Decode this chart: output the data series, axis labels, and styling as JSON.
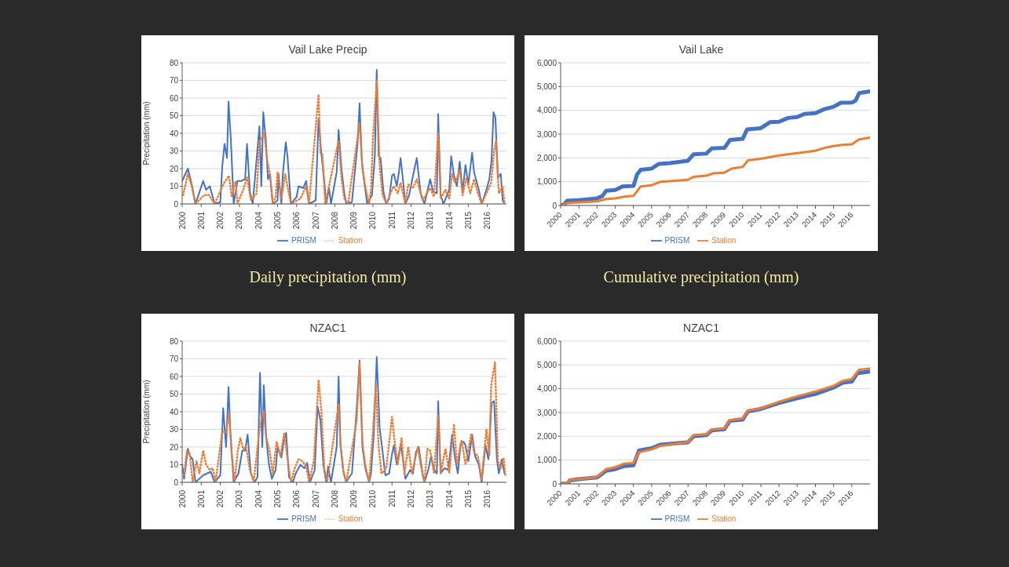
{
  "chart_data": [
    {
      "type": "line",
      "title": "Vail Lake Precip",
      "ylabel": "Precipitation (mm)",
      "annotations": [
        "Daily precipitation (mm)"
      ],
      "xlim": [
        2000,
        2017
      ],
      "xticks": [
        2000,
        2001,
        2002,
        2003,
        2004,
        2005,
        2006,
        2007,
        2008,
        2009,
        2010,
        2011,
        2012,
        2013,
        2014,
        2015,
        2016
      ],
      "ylim": [
        0,
        80
      ],
      "yticks": [
        0,
        10,
        20,
        30,
        40,
        50,
        60,
        70,
        80
      ],
      "grid": "y",
      "legend": "bottom",
      "series": [
        {
          "name": "PRISM",
          "color": "#4472c4",
          "line_style": "solid",
          "x": [
            2000.0,
            2000.3,
            2000.5,
            2000.7,
            2001.1,
            2001.25,
            2001.45,
            2001.7,
            2002.0,
            2002.1,
            2002.22,
            2002.35,
            2002.43,
            2002.55,
            2002.7,
            2002.9,
            2003.1,
            2003.3,
            2003.4,
            2003.55,
            2003.7,
            2004.05,
            2004.15,
            2004.25,
            2004.38,
            2004.5,
            2004.6,
            2004.75,
            2005.0,
            2005.05,
            2005.2,
            2005.28,
            2005.43,
            2005.52,
            2005.7,
            2006.0,
            2006.1,
            2006.35,
            2006.5,
            2006.65,
            2007.0,
            2007.15,
            2007.3,
            2007.45,
            2007.55,
            2007.7,
            2007.8,
            2008.1,
            2008.2,
            2008.35,
            2008.5,
            2008.6,
            2008.9,
            2009.2,
            2009.3,
            2009.42,
            2009.55,
            2009.7,
            2009.95,
            2010.1,
            2010.2,
            2010.3,
            2010.4,
            2010.55,
            2010.7,
            2010.85,
            2011.0,
            2011.1,
            2011.25,
            2011.35,
            2011.45,
            2011.55,
            2011.7,
            2011.9,
            2012.1,
            2012.3,
            2012.5,
            2012.7,
            2013.0,
            2013.15,
            2013.35,
            2013.42,
            2013.55,
            2013.7,
            2014.0,
            2014.1,
            2014.25,
            2014.4,
            2014.55,
            2014.7,
            2014.85,
            2015.0,
            2015.2,
            2015.3,
            2015.4,
            2015.55,
            2015.7,
            2015.95,
            2016.1,
            2016.22,
            2016.32,
            2016.42,
            2016.55,
            2016.7,
            2016.8,
            2016.9
          ],
          "values": [
            13,
            20,
            11,
            0,
            13,
            8,
            10,
            0,
            1,
            21,
            34,
            26,
            58,
            37,
            0,
            13,
            13,
            14,
            34,
            7,
            0,
            44,
            10,
            52,
            37,
            14,
            17,
            0,
            2,
            17,
            0,
            17,
            35,
            27,
            0,
            4,
            10,
            9,
            13,
            0,
            2,
            48,
            28,
            13,
            0,
            9,
            0,
            18,
            42,
            20,
            6,
            0,
            1,
            35,
            57,
            24,
            12,
            0,
            5,
            27,
            76,
            27,
            26,
            7,
            0,
            3,
            16,
            17,
            10,
            17,
            26,
            16,
            0,
            5,
            16,
            26,
            6,
            0,
            14,
            7,
            6,
            51,
            5,
            0,
            8,
            27,
            16,
            10,
            24,
            7,
            22,
            11,
            29,
            18,
            14,
            8,
            0,
            8,
            14,
            25,
            52,
            49,
            15,
            17,
            2,
            0
          ]
        },
        {
          "name": "Station",
          "color": "#ed7d31",
          "line_style": "dotted",
          "x": [
            2000.05,
            2000.3,
            2000.5,
            2000.7,
            2001.15,
            2001.4,
            2001.7,
            2002.2,
            2002.45,
            2002.6,
            2002.8,
            2002.9,
            2003.2,
            2003.4,
            2003.6,
            2003.9,
            2004.05,
            2004.3,
            2004.45,
            2004.6,
            2004.75,
            2004.9,
            2005.0,
            2005.2,
            2005.4,
            2005.55,
            2005.7,
            2006.2,
            2006.5,
            2006.65,
            2007.15,
            2007.25,
            2007.35,
            2007.5,
            2008.2,
            2008.35,
            2008.5,
            2008.7,
            2009.3,
            2009.45,
            2009.6,
            2009.8,
            2009.9,
            2010.0,
            2010.2,
            2010.35,
            2010.5,
            2010.7,
            2011.0,
            2011.1,
            2011.3,
            2011.45,
            2011.7,
            2011.85,
            2012.1,
            2012.3,
            2012.6,
            2013.0,
            2013.2,
            2013.42,
            2013.55,
            2013.8,
            2014.0,
            2014.15,
            2014.3,
            2014.55,
            2014.7,
            2014.9,
            2015.1,
            2015.3,
            2015.5,
            2015.7,
            2016.2,
            2016.35,
            2016.45,
            2016.6,
            2016.8,
            2016.9
          ],
          "values": [
            5,
            17,
            10,
            0,
            5,
            5,
            0,
            12,
            16,
            4,
            13,
            0,
            8,
            15,
            2,
            6,
            35,
            40,
            25,
            17,
            0,
            4,
            18,
            3,
            17,
            8,
            0,
            3,
            10,
            0,
            62,
            29,
            28,
            0,
            36,
            15,
            3,
            0,
            46,
            20,
            10,
            0,
            8,
            37,
            70,
            22,
            5,
            0,
            8,
            10,
            6,
            12,
            0,
            11,
            9,
            14,
            2,
            9,
            4,
            40,
            3,
            8,
            3,
            17,
            12,
            19,
            5,
            15,
            6,
            14,
            6,
            0,
            12,
            30,
            36,
            6,
            10,
            0
          ]
        }
      ]
    },
    {
      "type": "line",
      "title": "Vail Lake",
      "annotations": [
        "Cumulative precipitation (mm)"
      ],
      "xlim": [
        2000,
        2017
      ],
      "xticks": [
        2000,
        2001,
        2002,
        2003,
        2004,
        2005,
        2006,
        2007,
        2008,
        2009,
        2010,
        2011,
        2012,
        2013,
        2014,
        2015,
        2016
      ],
      "ylim": [
        0,
        6000
      ],
      "yticks": [
        0,
        {
          "value": 1000,
          "label": "1,000"
        },
        {
          "value": 2000,
          "label": "2,000"
        },
        {
          "value": 3000,
          "label": "3,000"
        },
        {
          "value": 4000,
          "label": "4,000"
        },
        {
          "value": 5000,
          "label": "5,000"
        },
        {
          "value": 6000,
          "label": "6,000"
        }
      ],
      "grid": "y",
      "legend": "bottom",
      "series": [
        {
          "name": "PRISM",
          "color": "#4472c4",
          "line_style": "solid",
          "x": [
            2000,
            2000.2,
            2000.35,
            2001,
            2002,
            2002.3,
            2002.5,
            2003,
            2003.4,
            2004,
            2004.2,
            2004.4,
            2005,
            2005.4,
            2006,
            2007,
            2007.3,
            2008,
            2008.3,
            2009,
            2009.3,
            2010,
            2010.25,
            2011,
            2011.5,
            2012,
            2012.5,
            2013,
            2013.4,
            2014,
            2014.5,
            2015,
            2015.4,
            2016,
            2016.2,
            2016.4,
            2017
          ],
          "values": [
            0,
            50,
            200,
            220,
            300,
            400,
            620,
            650,
            800,
            820,
            1300,
            1500,
            1550,
            1750,
            1780,
            1880,
            2150,
            2180,
            2400,
            2420,
            2750,
            2800,
            3200,
            3250,
            3500,
            3520,
            3680,
            3720,
            3850,
            3880,
            4050,
            4150,
            4320,
            4330,
            4400,
            4720,
            4800
          ]
        },
        {
          "name": "Station",
          "color": "#ed7d31",
          "line_style": "solid",
          "x": [
            2000,
            2000.4,
            2001,
            2002,
            2002.5,
            2003,
            2003.5,
            2004,
            2004.4,
            2005,
            2005.5,
            2006,
            2007,
            2007.3,
            2008,
            2008.4,
            2009,
            2009.4,
            2010,
            2010.3,
            2011,
            2012,
            2013,
            2014,
            2014.5,
            2015,
            2015.5,
            2016,
            2016.4,
            2017
          ],
          "values": [
            0,
            100,
            130,
            170,
            270,
            300,
            370,
            400,
            800,
            850,
            1000,
            1020,
            1080,
            1200,
            1250,
            1350,
            1380,
            1550,
            1620,
            1900,
            1960,
            2100,
            2200,
            2300,
            2420,
            2500,
            2550,
            2570,
            2780,
            2850
          ]
        }
      ]
    },
    {
      "type": "line",
      "title": "NZAC1",
      "ylabel": "Precipitation (mm)",
      "xlim": [
        2000,
        2017
      ],
      "xticks": [
        2000,
        2001,
        2002,
        2003,
        2004,
        2005,
        2006,
        2007,
        2008,
        2009,
        2010,
        2011,
        2012,
        2013,
        2014,
        2015,
        2016
      ],
      "ylim": [
        0,
        80
      ],
      "yticks": [
        0,
        10,
        20,
        30,
        40,
        50,
        60,
        70,
        80
      ],
      "grid": "y",
      "legend": "bottom",
      "series": [
        {
          "name": "PRISM",
          "color": "#4472c4",
          "line_style": "solid",
          "x": [
            2000.0,
            2000.1,
            2000.3,
            2000.4,
            2000.55,
            2000.7,
            2001.1,
            2001.3,
            2001.5,
            2001.7,
            2002.0,
            2002.15,
            2002.3,
            2002.43,
            2002.52,
            2002.7,
            2002.95,
            2003.15,
            2003.3,
            2003.43,
            2003.6,
            2003.8,
            2003.95,
            2004.08,
            2004.2,
            2004.28,
            2004.4,
            2004.55,
            2004.7,
            2004.9,
            2005.0,
            2005.2,
            2005.35,
            2005.45,
            2005.6,
            2005.8,
            2005.95,
            2006.2,
            2006.4,
            2006.55,
            2006.7,
            2006.95,
            2007.1,
            2007.25,
            2007.4,
            2007.55,
            2007.65,
            2007.8,
            2008.1,
            2008.2,
            2008.3,
            2008.45,
            2008.6,
            2008.7,
            2008.9,
            2009.15,
            2009.3,
            2009.45,
            2009.6,
            2009.8,
            2009.9,
            2010.05,
            2010.2,
            2010.35,
            2010.5,
            2010.65,
            2010.85,
            2011.0,
            2011.1,
            2011.25,
            2011.45,
            2011.55,
            2011.7,
            2011.95,
            2012.1,
            2012.25,
            2012.4,
            2012.6,
            2012.7,
            2012.9,
            2013.05,
            2013.2,
            2013.35,
            2013.42,
            2013.55,
            2013.75,
            2013.95,
            2014.15,
            2014.3,
            2014.45,
            2014.6,
            2014.75,
            2014.85,
            2015.0,
            2015.2,
            2015.35,
            2015.55,
            2015.7,
            2015.9,
            2016.05,
            2016.22,
            2016.35,
            2016.5,
            2016.6,
            2016.75,
            2016.9
          ],
          "values": [
            10,
            2,
            19,
            15,
            13,
            0,
            4,
            5,
            6,
            0,
            4,
            42,
            20,
            54,
            30,
            0,
            5,
            18,
            18,
            27,
            5,
            0,
            3,
            62,
            20,
            55,
            26,
            10,
            2,
            7,
            20,
            14,
            25,
            28,
            3,
            0,
            5,
            10,
            8,
            11,
            0,
            7,
            43,
            35,
            10,
            0,
            9,
            0,
            20,
            60,
            21,
            6,
            0,
            2,
            5,
            42,
            69,
            20,
            8,
            0,
            5,
            28,
            71,
            31,
            18,
            4,
            5,
            16,
            21,
            10,
            21,
            15,
            2,
            7,
            5,
            17,
            20,
            5,
            0,
            7,
            15,
            7,
            5,
            46,
            5,
            8,
            7,
            27,
            14,
            5,
            22,
            23,
            21,
            12,
            27,
            15,
            10,
            0,
            21,
            13,
            45,
            46,
            13,
            5,
            13,
            5
          ]
        },
        {
          "name": "Station",
          "color": "#ed7d31",
          "line_style": "dotted",
          "x": [
            2000.1,
            2000.25,
            2000.4,
            2000.55,
            2000.75,
            2000.9,
            2001.1,
            2001.25,
            2001.45,
            2001.6,
            2001.75,
            2002.1,
            2002.3,
            2002.45,
            2002.6,
            2002.75,
            2002.9,
            2003.05,
            2003.2,
            2003.35,
            2003.55,
            2003.75,
            2004.05,
            2004.25,
            2004.4,
            2004.6,
            2004.75,
            2004.95,
            2005.15,
            2005.35,
            2005.5,
            2005.7,
            2005.9,
            2006.1,
            2006.3,
            2006.5,
            2006.65,
            2006.9,
            2007.15,
            2007.3,
            2007.45,
            2007.6,
            2008.2,
            2008.3,
            2008.45,
            2008.6,
            2009.15,
            2009.3,
            2009.45,
            2009.6,
            2009.8,
            2010.0,
            2010.15,
            2010.3,
            2010.45,
            2010.7,
            2011.0,
            2011.15,
            2011.3,
            2011.5,
            2011.65,
            2011.85,
            2012.05,
            2012.35,
            2012.5,
            2012.7,
            2012.85,
            2013.0,
            2013.2,
            2013.42,
            2013.55,
            2013.8,
            2014.0,
            2014.25,
            2014.4,
            2014.65,
            2014.85,
            2015.15,
            2015.3,
            2015.5,
            2015.7,
            2015.95,
            2016.1,
            2016.2,
            2016.4,
            2016.55,
            2016.7,
            2016.85,
            2016.95
          ],
          "values": [
            4,
            18,
            16,
            0,
            12,
            5,
            18,
            10,
            7,
            8,
            0,
            29,
            28,
            39,
            15,
            0,
            17,
            25,
            19,
            20,
            7,
            0,
            30,
            41,
            26,
            17,
            5,
            23,
            15,
            28,
            15,
            0,
            8,
            13,
            12,
            9,
            0,
            12,
            58,
            40,
            8,
            0,
            44,
            21,
            7,
            0,
            35,
            68,
            22,
            10,
            0,
            29,
            55,
            20,
            5,
            8,
            37,
            22,
            10,
            25,
            5,
            20,
            5,
            20,
            10,
            0,
            19,
            18,
            5,
            38,
            5,
            19,
            5,
            33,
            10,
            24,
            10,
            27,
            17,
            15,
            2,
            30,
            15,
            55,
            68,
            12,
            8,
            14,
            3
          ]
        }
      ]
    },
    {
      "type": "line",
      "title": "NZAC1",
      "xlim": [
        2000,
        2017
      ],
      "xticks": [
        2000,
        2001,
        2002,
        2003,
        2004,
        2005,
        2006,
        2007,
        2008,
        2009,
        2010,
        2011,
        2012,
        2013,
        2014,
        2015,
        2016
      ],
      "ylim": [
        0,
        6000
      ],
      "yticks": [
        0,
        {
          "value": 1000,
          "label": "1,000"
        },
        {
          "value": 2000,
          "label": "2,000"
        },
        {
          "value": 3000,
          "label": "3,000"
        },
        {
          "value": 4000,
          "label": "4,000"
        },
        {
          "value": 5000,
          "label": "5,000"
        },
        {
          "value": 6000,
          "label": "6,000"
        }
      ],
      "grid": "y",
      "legend": "bottom",
      "series": [
        {
          "name": "PRISM",
          "color": "#4472c4",
          "line_style": "solid",
          "x": [
            2000,
            2000.4,
            2000.5,
            2001,
            2002,
            2002.5,
            2003,
            2003.5,
            2004,
            2004.3,
            2005,
            2005.5,
            2006,
            2007,
            2007.3,
            2008,
            2008.3,
            2009,
            2009.3,
            2010,
            2010.3,
            2011,
            2012,
            2013,
            2014,
            2015,
            2015.5,
            2016,
            2016.3,
            2017
          ],
          "values": [
            0,
            20,
            150,
            200,
            270,
            550,
            620,
            750,
            780,
            1400,
            1500,
            1650,
            1680,
            1750,
            2000,
            2050,
            2250,
            2300,
            2650,
            2700,
            3050,
            3150,
            3400,
            3600,
            3780,
            4050,
            4250,
            4300,
            4650,
            4720
          ]
        },
        {
          "name": "Station",
          "color": "#ed7d31",
          "line_style": "solid",
          "x": [
            2000,
            2000.4,
            2000.5,
            2001,
            2002,
            2002.5,
            2003,
            2003.5,
            2004,
            2004.3,
            2005,
            2005.5,
            2006,
            2007,
            2007.3,
            2008,
            2008.3,
            2009,
            2009.3,
            2010,
            2010.3,
            2011,
            2012,
            2013,
            2014,
            2015,
            2015.5,
            2016,
            2016.4,
            2017
          ],
          "values": [
            0,
            30,
            170,
            200,
            290,
            620,
            700,
            850,
            870,
            1330,
            1450,
            1600,
            1650,
            1760,
            2050,
            2080,
            2280,
            2330,
            2680,
            2750,
            3080,
            3170,
            3450,
            3680,
            3880,
            4120,
            4330,
            4400,
            4800,
            4850
          ]
        }
      ]
    }
  ]
}
